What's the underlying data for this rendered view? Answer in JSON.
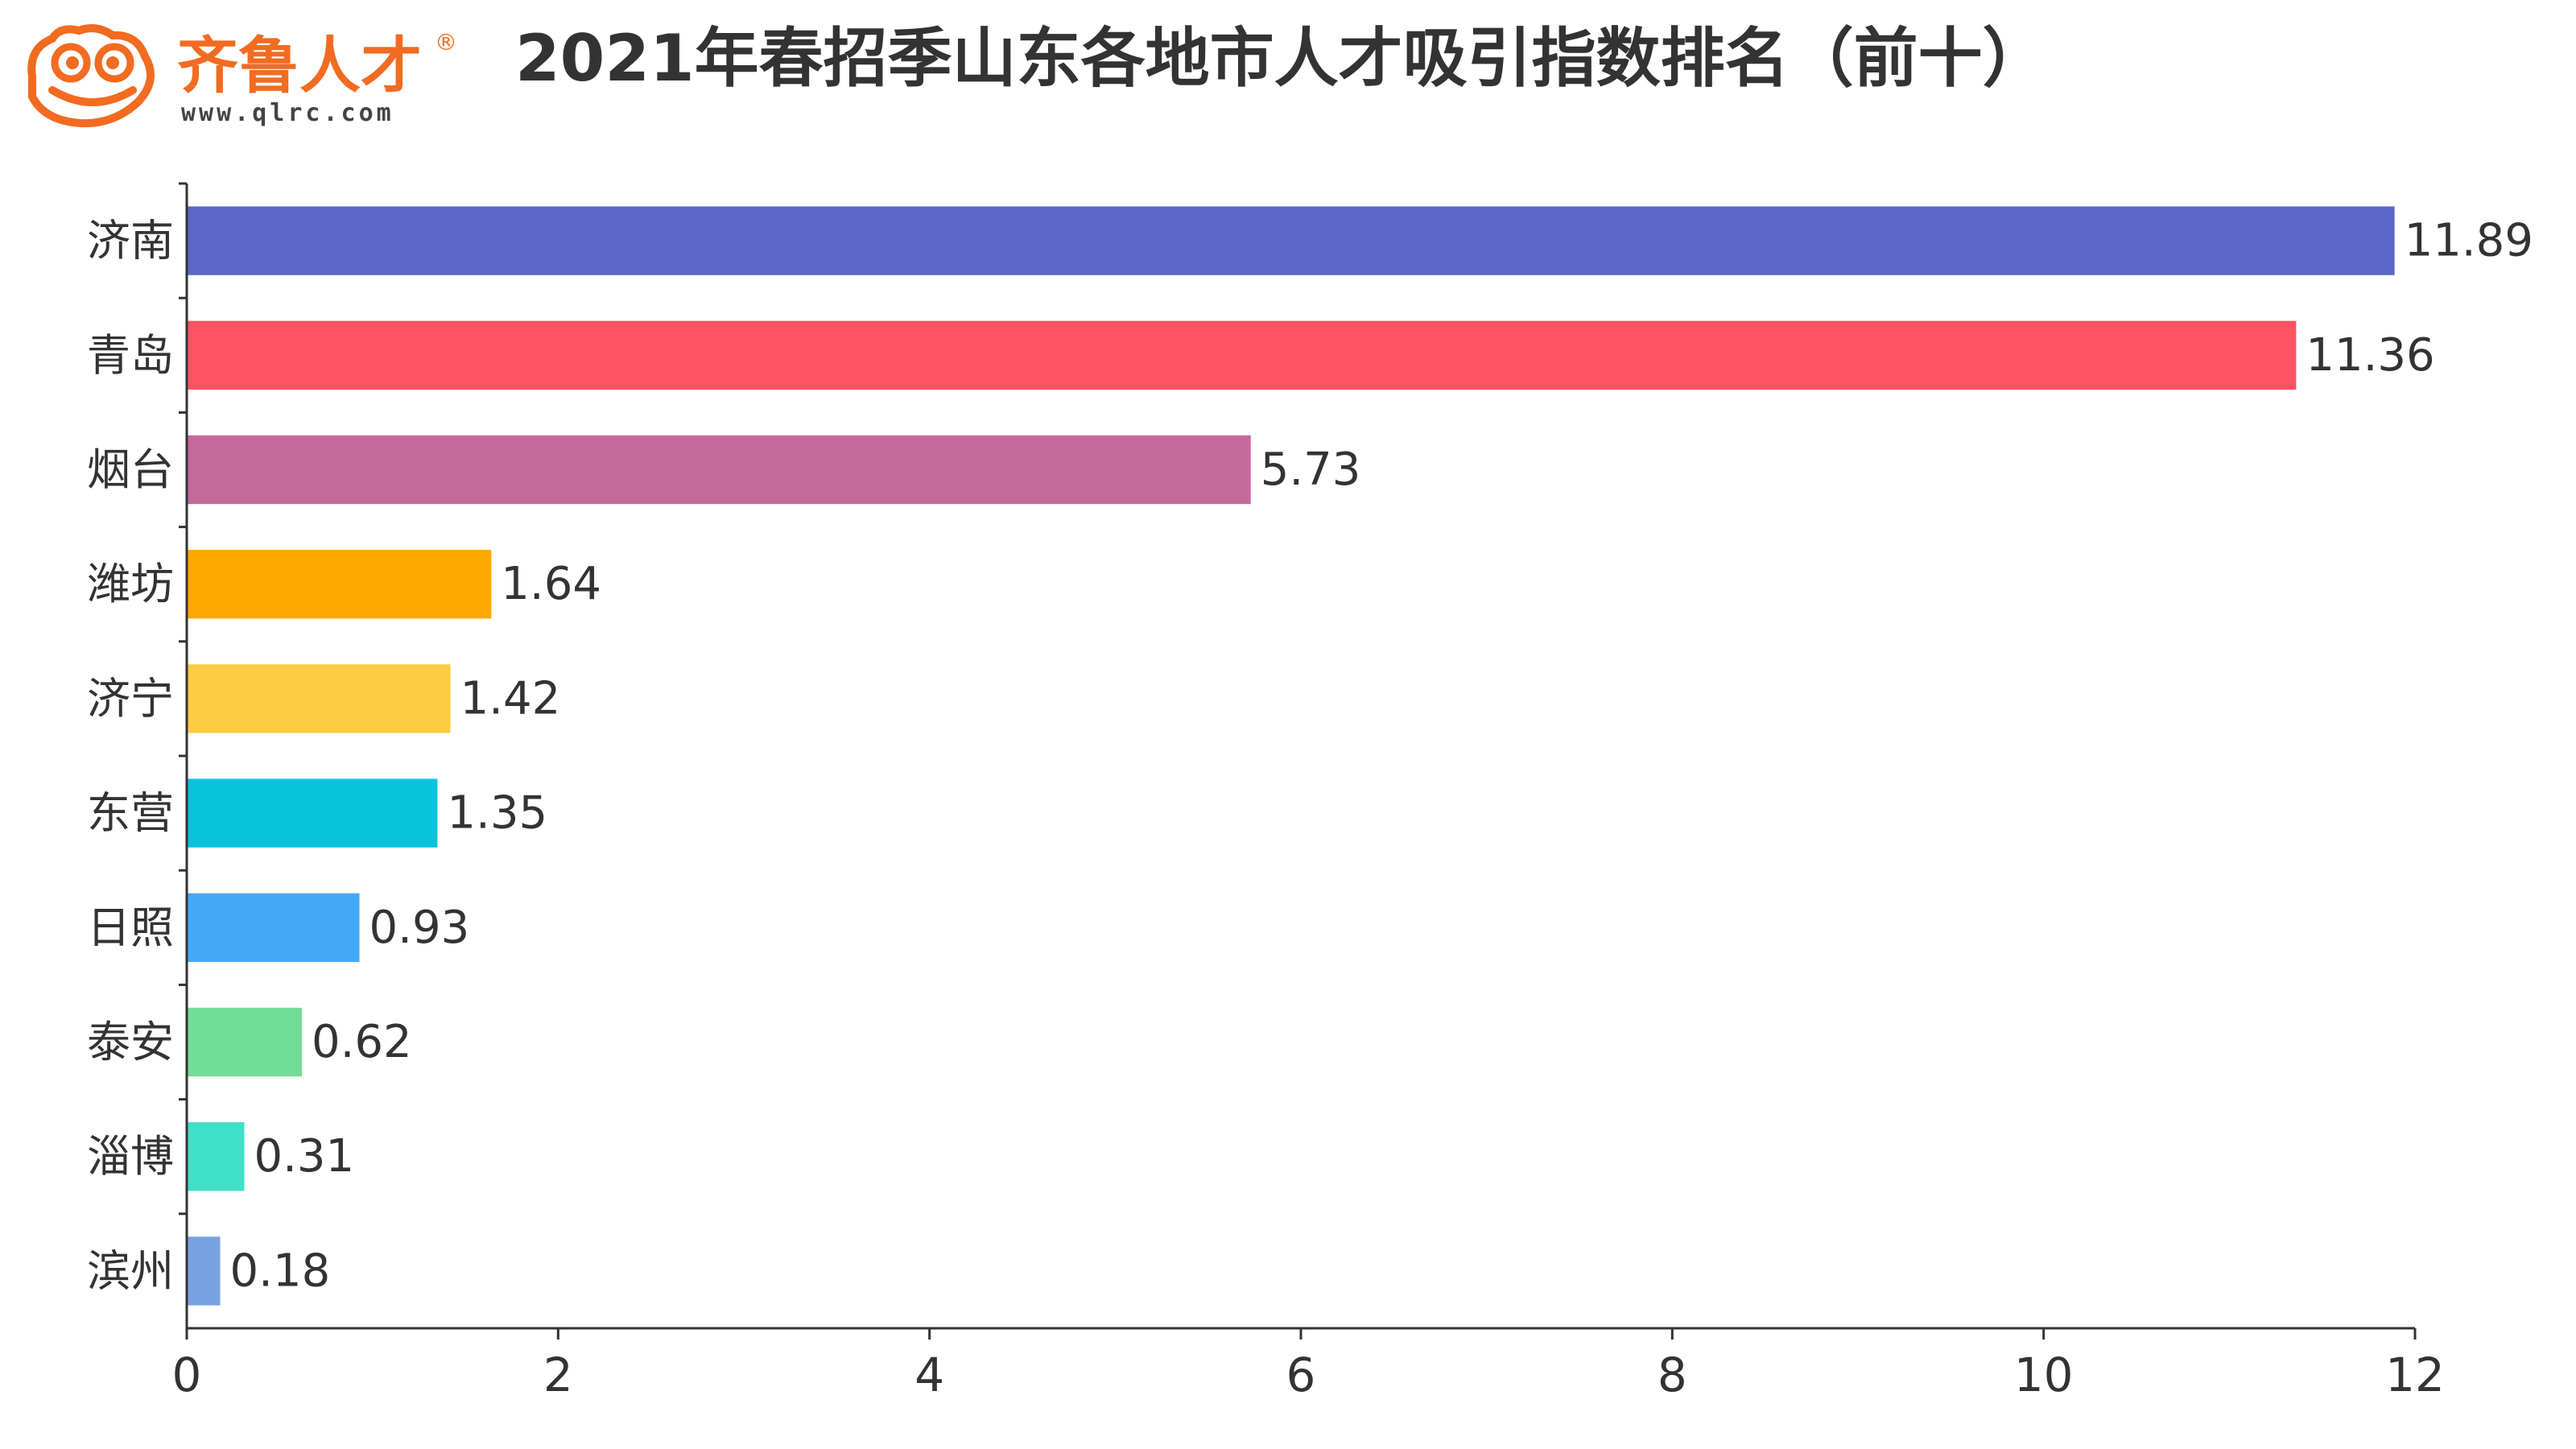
{
  "logo": {
    "brand_text": "齐鲁人才",
    "registered_mark": "®",
    "url_text": "www.qlrc.com",
    "brand_color": "#F26B21"
  },
  "chart_data": {
    "type": "bar",
    "orientation": "horizontal",
    "title": "2021年春招季山东各地市人才吸引指数排名（前十）",
    "categories": [
      "济南",
      "青岛",
      "烟台",
      "潍坊",
      "济宁",
      "东营",
      "日照",
      "泰安",
      "淄博",
      "滨州"
    ],
    "values": [
      11.89,
      11.36,
      5.73,
      1.64,
      1.42,
      1.35,
      0.93,
      0.62,
      0.31,
      0.18
    ],
    "value_labels": [
      "11.89",
      "11.36",
      "5.73",
      "1.64",
      "1.42",
      "1.35",
      "0.93",
      "0.62",
      "0.31",
      "0.18"
    ],
    "colors": [
      "#5A67C6",
      "#FF5263",
      "#C4699C",
      "#FFA800",
      "#FFCD44",
      "#07C4DC",
      "#45A9F9",
      "#72DD97",
      "#40E0C8",
      "#78A1E3"
    ],
    "xlim": [
      0,
      12
    ],
    "xticks": [
      0,
      2,
      4,
      6,
      8,
      10,
      12
    ],
    "xlabel": "",
    "ylabel": "",
    "grid": false,
    "legend": "none"
  }
}
